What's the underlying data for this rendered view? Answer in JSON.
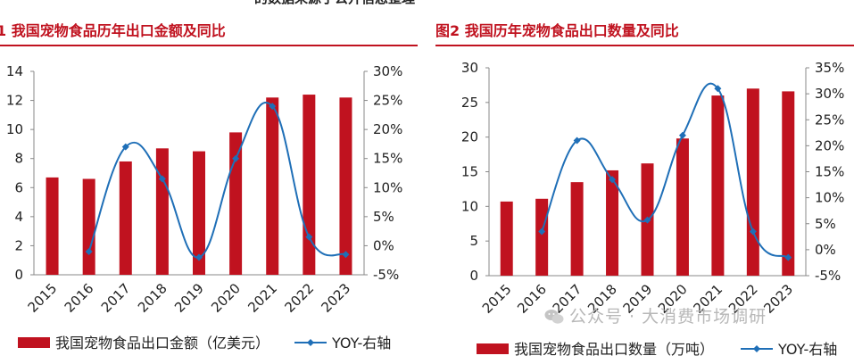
{
  "header_fragment": "的数据来源于公开信息整理",
  "watermark": "公众号 · 大消费市场调研",
  "colors": {
    "bar": "#c0121f",
    "line": "#1f6fb7",
    "title": "#c0121f"
  },
  "chart_data": [
    {
      "type": "bar",
      "title": "1  我国宠物食品历年出口金额及同比",
      "categories": [
        "2015",
        "2016",
        "2017",
        "2018",
        "2019",
        "2020",
        "2021",
        "2022",
        "2023"
      ],
      "series": [
        {
          "name": "我国宠物食品出口金额（亿美元）",
          "axis": "left",
          "kind": "bar",
          "values": [
            6.7,
            6.6,
            7.8,
            8.7,
            8.5,
            9.8,
            12.2,
            12.4,
            12.2
          ]
        },
        {
          "name": "YOY-右轴",
          "axis": "right",
          "kind": "line",
          "marker": "diamond",
          "values": [
            null,
            -1.0,
            17.0,
            11.5,
            -2.0,
            15.0,
            24.0,
            1.5,
            -1.5
          ]
        }
      ],
      "left_axis": {
        "ylim": [
          0,
          14
        ],
        "ticks": [
          0,
          2,
          4,
          6,
          8,
          10,
          12,
          14
        ]
      },
      "right_axis": {
        "ylim": [
          -5,
          30
        ],
        "ticks": [
          "-5%",
          "0%",
          "5%",
          "10%",
          "15%",
          "20%",
          "25%",
          "30%"
        ]
      },
      "legend": [
        "我国宠物食品出口金额（亿美元）",
        "YOY-右轴"
      ]
    },
    {
      "type": "bar",
      "title": "图2  我国历年宠物食品出口数量及同比",
      "categories": [
        "2015",
        "2016",
        "2017",
        "2018",
        "2019",
        "2020",
        "2021",
        "2022",
        "2023"
      ],
      "series": [
        {
          "name": "我国宠物食品出口数量（万吨）",
          "axis": "left",
          "kind": "bar",
          "values": [
            10.7,
            11.1,
            13.5,
            15.2,
            16.2,
            19.8,
            26.0,
            27.0,
            26.6
          ]
        },
        {
          "name": "YOY-右轴",
          "axis": "right",
          "kind": "line",
          "marker": "diamond",
          "values": [
            null,
            3.5,
            21.0,
            13.5,
            5.7,
            22.0,
            31.0,
            3.5,
            -1.5
          ]
        }
      ],
      "left_axis": {
        "ylim": [
          0,
          30
        ],
        "ticks": [
          0,
          5,
          10,
          15,
          20,
          25,
          30
        ]
      },
      "right_axis": {
        "ylim": [
          -5,
          35
        ],
        "ticks": [
          "-5%",
          "0%",
          "5%",
          "10%",
          "15%",
          "20%",
          "25%",
          "30%",
          "35%"
        ]
      },
      "legend": [
        "我国宠物食品出口数量（万吨）",
        "YOY-右轴"
      ]
    }
  ]
}
